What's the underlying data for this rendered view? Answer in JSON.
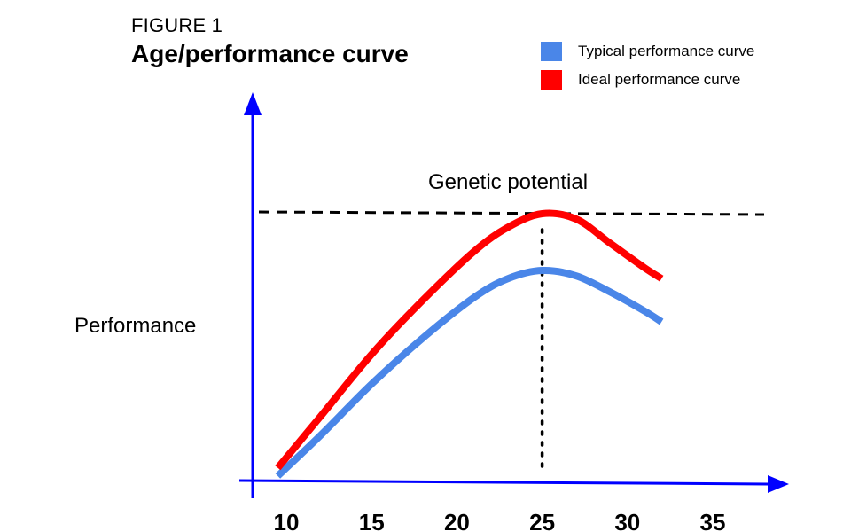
{
  "figure": {
    "label": "FIGURE 1",
    "title": "Age/performance curve"
  },
  "chart_data": {
    "type": "line",
    "title": "Age/performance curve",
    "xlabel": "",
    "ylabel": "Performance",
    "x_ticks": [
      10,
      15,
      20,
      25,
      30,
      35
    ],
    "xlim": [
      8,
      38
    ],
    "ylim": [
      0,
      100
    ],
    "grid": false,
    "legend_position": "top-right",
    "annotation": "Genetic potential",
    "reference_line": {
      "y": 100
    },
    "peak_marker": {
      "x": 25
    },
    "series": [
      {
        "name": "Typical performance curve",
        "color": "#4a86e8",
        "x": [
          9.5,
          12,
          15,
          18,
          21,
          23,
          25,
          27,
          29,
          31,
          32
        ],
        "y": [
          3,
          18,
          37,
          54,
          69,
          76,
          79,
          77,
          71,
          64,
          60
        ]
      },
      {
        "name": "Ideal performance curve",
        "color": "#ff0000",
        "x": [
          9.5,
          12,
          15,
          18,
          21,
          23,
          25,
          27,
          29,
          31,
          32
        ],
        "y": [
          6,
          25,
          48,
          68,
          86,
          95,
          100,
          98,
          89,
          80,
          76
        ]
      }
    ],
    "axis_color": "#0000ff"
  }
}
